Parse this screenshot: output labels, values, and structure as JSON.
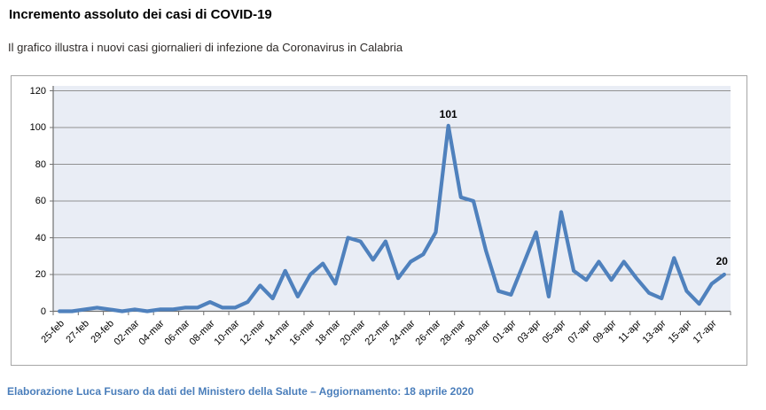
{
  "page": {
    "title": "Incremento assoluto dei casi di COVID-19",
    "subtitle": "Il grafico illustra i nuovi casi giornalieri di infezione da Coronavirus in Calabria",
    "footer": "Elaborazione Luca Fusaro da dati del Ministero della Salute – Aggiornamento: 18 aprile 2020"
  },
  "chart_data": {
    "type": "line",
    "title": "Incremento assoluto dei casi di COVID-19",
    "xlabel": "",
    "ylabel": "",
    "ylim": [
      0,
      120
    ],
    "y_ticks": [
      0,
      20,
      40,
      60,
      80,
      100,
      120
    ],
    "grid": true,
    "legend": "none",
    "x": [
      "25-feb",
      "26-feb",
      "27-feb",
      "28-feb",
      "29-feb",
      "01-mar",
      "02-mar",
      "03-mar",
      "04-mar",
      "05-mar",
      "06-mar",
      "07-mar",
      "08-mar",
      "09-mar",
      "10-mar",
      "11-mar",
      "12-mar",
      "13-mar",
      "14-mar",
      "15-mar",
      "16-mar",
      "17-mar",
      "18-mar",
      "19-mar",
      "20-mar",
      "21-mar",
      "22-mar",
      "23-mar",
      "24-mar",
      "25-mar",
      "26-mar",
      "27-mar",
      "28-mar",
      "29-mar",
      "30-mar",
      "31-mar",
      "01-apr",
      "02-apr",
      "03-apr",
      "04-apr",
      "05-apr",
      "06-apr",
      "07-apr",
      "08-apr",
      "09-apr",
      "10-apr",
      "11-apr",
      "12-apr",
      "13-apr",
      "14-apr",
      "15-apr",
      "16-apr",
      "17-apr",
      "18-apr"
    ],
    "series": [
      {
        "name": "Nuovi casi giornalieri",
        "values": [
          0,
          0,
          1,
          2,
          1,
          0,
          1,
          0,
          1,
          1,
          2,
          2,
          5,
          2,
          2,
          5,
          14,
          7,
          22,
          8,
          20,
          26,
          15,
          40,
          38,
          28,
          38,
          18,
          27,
          31,
          43,
          101,
          62,
          60,
          33,
          11,
          9,
          26,
          43,
          8,
          54,
          22,
          17,
          27,
          17,
          27,
          18,
          10,
          7,
          29,
          11,
          4,
          15,
          20
        ]
      }
    ],
    "x_tick_labels": [
      "25-feb",
      "27-feb",
      "29-feb",
      "02-mar",
      "04-mar",
      "06-mar",
      "08-mar",
      "10-mar",
      "12-mar",
      "14-mar",
      "16-mar",
      "18-mar",
      "20-mar",
      "22-mar",
      "24-mar",
      "26-mar",
      "28-mar",
      "30-mar",
      "01-apr",
      "03-apr",
      "05-apr",
      "07-apr",
      "09-apr",
      "11-apr",
      "13-apr",
      "15-apr",
      "17-apr"
    ],
    "annotations": [
      {
        "x": "27-mar",
        "label": "101",
        "placement": "above"
      },
      {
        "x": "18-apr",
        "label": "20",
        "placement": "above-left"
      }
    ],
    "colors": {
      "line": "#4F81BD",
      "plot_bg": "#E9EDF5",
      "gridline": "#919191",
      "axis": "#707070",
      "chart_border": "#A6A6A6",
      "text": "#000000",
      "footer": "#4A7EBB"
    }
  }
}
